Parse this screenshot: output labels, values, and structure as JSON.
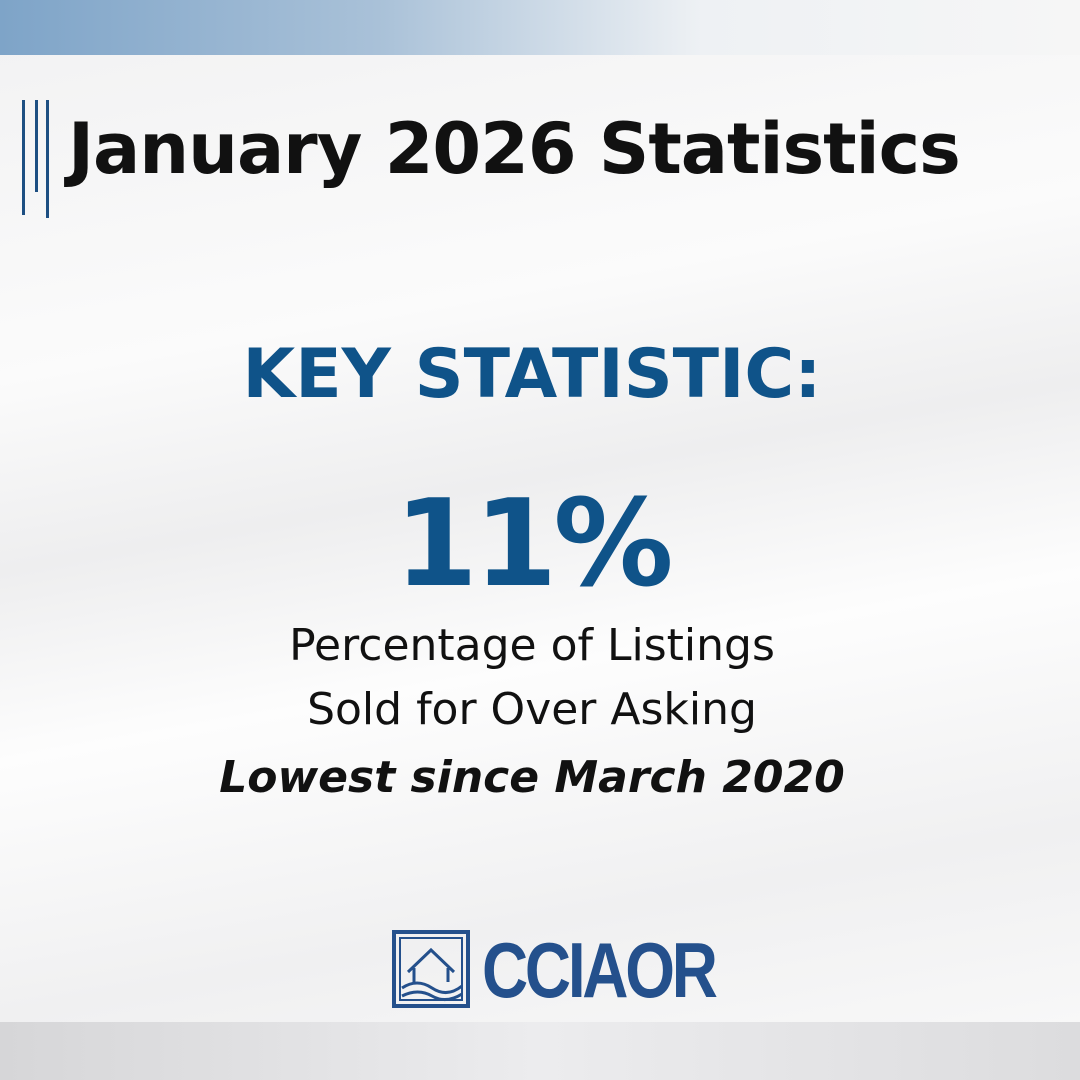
{
  "header": {
    "title": "January 2026 Statistics"
  },
  "key_stat": {
    "label": "KEY STATISTIC:",
    "value": "11%",
    "description": [
      "Percentage of Listings",
      "Sold for Over Asking"
    ],
    "note": "Lowest since March 2020"
  },
  "footer": {
    "logo_text": "CCIAOR"
  }
}
